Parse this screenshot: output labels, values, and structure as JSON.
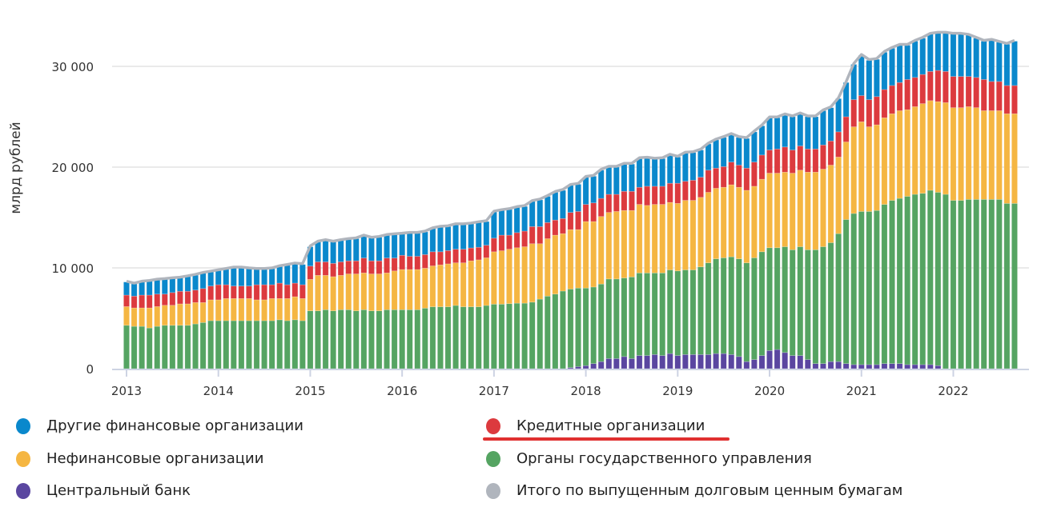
{
  "chart_data": {
    "type": "bar",
    "stacked": true,
    "title": "",
    "xlabel": "",
    "ylabel": "млрд рублей",
    "ylim": [
      0,
      34000
    ],
    "yticks": [
      0,
      10000,
      20000,
      30000
    ],
    "ytick_labels": [
      "0",
      "10 000",
      "20 000",
      "30 000"
    ],
    "xtick_labels": [
      "2013",
      "2014",
      "2015",
      "2016",
      "2017",
      "2018",
      "2019",
      "2020",
      "2021",
      "2022"
    ],
    "grid": "horizontal",
    "legend_placement": "bottom",
    "x": [
      "2013-01",
      "2013-02",
      "2013-03",
      "2013-04",
      "2013-05",
      "2013-06",
      "2013-07",
      "2013-08",
      "2013-09",
      "2013-10",
      "2013-11",
      "2013-12",
      "2014-01",
      "2014-02",
      "2014-03",
      "2014-04",
      "2014-05",
      "2014-06",
      "2014-07",
      "2014-08",
      "2014-09",
      "2014-10",
      "2014-11",
      "2014-12",
      "2015-01",
      "2015-02",
      "2015-03",
      "2015-04",
      "2015-05",
      "2015-06",
      "2015-07",
      "2015-08",
      "2015-09",
      "2015-10",
      "2015-11",
      "2015-12",
      "2016-01",
      "2016-02",
      "2016-03",
      "2016-04",
      "2016-05",
      "2016-06",
      "2016-07",
      "2016-08",
      "2016-09",
      "2016-10",
      "2016-11",
      "2016-12",
      "2017-01",
      "2017-02",
      "2017-03",
      "2017-04",
      "2017-05",
      "2017-06",
      "2017-07",
      "2017-08",
      "2017-09",
      "2017-10",
      "2017-11",
      "2017-12",
      "2018-01",
      "2018-02",
      "2018-03",
      "2018-04",
      "2018-05",
      "2018-06",
      "2018-07",
      "2018-08",
      "2018-09",
      "2018-10",
      "2018-11",
      "2018-12",
      "2019-01",
      "2019-02",
      "2019-03",
      "2019-04",
      "2019-05",
      "2019-06",
      "2019-07",
      "2019-08",
      "2019-09",
      "2019-10",
      "2019-11",
      "2019-12",
      "2020-01",
      "2020-02",
      "2020-03",
      "2020-04",
      "2020-05",
      "2020-06",
      "2020-07",
      "2020-08",
      "2020-09",
      "2020-10",
      "2020-11",
      "2020-12",
      "2021-01",
      "2021-02",
      "2021-03",
      "2021-04",
      "2021-05",
      "2021-06",
      "2021-07",
      "2021-08",
      "2021-09",
      "2021-10",
      "2021-11",
      "2021-12",
      "2022-01",
      "2022-02",
      "2022-03",
      "2022-04",
      "2022-05",
      "2022-06",
      "2022-07",
      "2022-08",
      "2022-09"
    ],
    "series": [
      {
        "name": "Центральный банк",
        "color": "#5a46a0",
        "values": [
          0,
          0,
          0,
          0,
          0,
          0,
          0,
          0,
          0,
          0,
          0,
          0,
          0,
          0,
          0,
          0,
          0,
          0,
          0,
          0,
          0,
          0,
          0,
          0,
          0,
          0,
          0,
          0,
          0,
          0,
          0,
          0,
          0,
          0,
          0,
          0,
          0,
          0,
          0,
          0,
          0,
          0,
          0,
          0,
          0,
          0,
          0,
          0,
          0,
          0,
          0,
          0,
          0,
          0,
          0,
          0,
          0,
          0,
          100,
          200,
          300,
          500,
          700,
          1000,
          1000,
          1200,
          1000,
          1300,
          1300,
          1400,
          1300,
          1500,
          1300,
          1400,
          1400,
          1400,
          1400,
          1500,
          1500,
          1400,
          1200,
          700,
          900,
          1300,
          1800,
          1900,
          1600,
          1300,
          1300,
          900,
          500,
          500,
          700,
          700,
          500,
          400,
          400,
          400,
          400,
          500,
          500,
          500,
          400,
          400,
          400,
          400,
          300,
          0,
          0,
          0,
          0,
          0,
          0,
          0,
          0,
          0,
          0
        ]
      },
      {
        "name": "Органы государственного управления",
        "color": "#55a462",
        "values": [
          4300,
          4200,
          4200,
          4040,
          4200,
          4300,
          4300,
          4300,
          4300,
          4440,
          4580,
          4760,
          4760,
          4760,
          4760,
          4760,
          4760,
          4760,
          4760,
          4760,
          4850,
          4760,
          4850,
          4760,
          5740,
          5740,
          5850,
          5740,
          5850,
          5850,
          5740,
          5850,
          5740,
          5740,
          5850,
          5850,
          5850,
          5850,
          5850,
          6000,
          6140,
          6140,
          6140,
          6270,
          6140,
          6140,
          6140,
          6270,
          6400,
          6400,
          6450,
          6500,
          6500,
          6600,
          6900,
          7200,
          7400,
          7700,
          7800,
          7800,
          7700,
          7600,
          7700,
          7900,
          7900,
          7800,
          8100,
          8200,
          8200,
          8100,
          8200,
          8300,
          8400,
          8400,
          8400,
          8700,
          9100,
          9400,
          9500,
          9700,
          9700,
          9800,
          10100,
          10300,
          10200,
          10100,
          10500,
          10500,
          10800,
          10900,
          11300,
          11600,
          11800,
          12700,
          14300,
          15000,
          15200,
          15200,
          15300,
          15800,
          16200,
          16400,
          16700,
          16900,
          17000,
          17300,
          17200,
          17300,
          16700,
          16700,
          16800,
          16800,
          16800,
          16800,
          16800,
          16400,
          16400
        ]
      },
      {
        "name": "Нефинансовые организации",
        "color": "#f5b642",
        "values": [
          1860,
          1830,
          1830,
          1990,
          1960,
          1990,
          1990,
          2130,
          2130,
          2120,
          1980,
          2070,
          2070,
          2200,
          2200,
          2200,
          2200,
          2070,
          2070,
          2200,
          2110,
          2200,
          2290,
          2200,
          3120,
          3520,
          3410,
          3390,
          3410,
          3550,
          3660,
          3650,
          3660,
          3660,
          3650,
          3850,
          3990,
          3990,
          3990,
          3970,
          4060,
          4160,
          4260,
          4230,
          4360,
          4560,
          4660,
          4730,
          5200,
          5300,
          5400,
          5500,
          5600,
          5800,
          5500,
          5700,
          5850,
          5700,
          5900,
          5800,
          6600,
          6500,
          6700,
          6600,
          6700,
          6700,
          6600,
          6800,
          6700,
          6800,
          6800,
          6700,
          6700,
          6900,
          6900,
          6900,
          7000,
          7000,
          7000,
          7150,
          7100,
          7200,
          7100,
          7200,
          7400,
          7400,
          7400,
          7600,
          7600,
          7700,
          7700,
          7700,
          7700,
          7600,
          7700,
          8600,
          8900,
          8400,
          8500,
          8600,
          8600,
          8700,
          8600,
          8700,
          8900,
          8900,
          9000,
          9100,
          9200,
          9200,
          9200,
          9100,
          8800,
          8800,
          8800,
          8900,
          8900
        ]
      },
      {
        "name": "Кредитные организации",
        "color": "#dc3a3e",
        "values": [
          1140,
          1170,
          1270,
          1270,
          1240,
          1110,
          1260,
          1250,
          1250,
          1240,
          1390,
          1370,
          1500,
          1370,
          1240,
          1240,
          1240,
          1500,
          1500,
          1370,
          1530,
          1370,
          1350,
          1370,
          1320,
          1340,
          1340,
          1320,
          1340,
          1300,
          1300,
          1480,
          1300,
          1300,
          1480,
          1280,
          1410,
          1310,
          1310,
          1350,
          1400,
          1300,
          1320,
          1350,
          1350,
          1280,
          1250,
          1250,
          1350,
          1550,
          1400,
          1500,
          1550,
          1700,
          1700,
          1600,
          1500,
          1500,
          1700,
          1800,
          1700,
          1850,
          1800,
          1800,
          1700,
          1900,
          1900,
          1700,
          1900,
          1800,
          1800,
          1900,
          2000,
          1900,
          2000,
          2000,
          2200,
          2000,
          2050,
          2250,
          2200,
          2200,
          2400,
          2400,
          2300,
          2400,
          2500,
          2300,
          2400,
          2300,
          2300,
          2400,
          2400,
          2500,
          2500,
          2700,
          2600,
          2700,
          2800,
          2800,
          2800,
          2800,
          3000,
          2900,
          2900,
          2900,
          3100,
          3100,
          3100,
          3100,
          3000,
          3000,
          3100,
          2900,
          2900,
          2800,
          2800
        ]
      },
      {
        "name": "Другие финансовые организации",
        "color": "#0a88cc",
        "values": [
          1300,
          1210,
          1300,
          1370,
          1400,
          1460,
          1390,
          1320,
          1450,
          1480,
          1520,
          1400,
          1400,
          1530,
          1800,
          1800,
          1720,
          1530,
          1530,
          1590,
          1640,
          1930,
          1910,
          2010,
          1920,
          1970,
          2120,
          2120,
          2120,
          2130,
          2200,
          2190,
          2260,
          2340,
          2250,
          2320,
          2110,
          2290,
          2290,
          2250,
          2300,
          2450,
          2380,
          2450,
          2450,
          2390,
          2450,
          2350,
          2600,
          2450,
          2550,
          2500,
          2450,
          2500,
          2650,
          2600,
          2750,
          2800,
          2700,
          2700,
          2700,
          2650,
          2800,
          2700,
          2700,
          2700,
          2700,
          2850,
          2800,
          2700,
          2750,
          2800,
          2600,
          2800,
          2750,
          2700,
          2600,
          2800,
          2900,
          2750,
          2750,
          2950,
          3000,
          2900,
          3200,
          3100,
          3200,
          3300,
          3200,
          3200,
          3200,
          3400,
          3300,
          3300,
          3400,
          3500,
          4000,
          3900,
          3700,
          3700,
          3700,
          3700,
          3400,
          3600,
          3600,
          3700,
          3700,
          3800,
          4200,
          4200,
          4100,
          3900,
          3800,
          4100,
          3900,
          4100,
          4400
        ]
      }
    ],
    "total_line": {
      "name": "Итого по выпущенным долговым ценным бумагам",
      "color": "#b0b5bd",
      "values": [
        8600,
        8410,
        8600,
        8670,
        8800,
        8860,
        8940,
        9000,
        9130,
        9280,
        9470,
        9600,
        9730,
        9860,
        10000,
        10000,
        9920,
        9860,
        9860,
        9920,
        10130,
        10260,
        10400,
        10340,
        12100,
        12570,
        12720,
        12570,
        12720,
        12830,
        12900,
        13170,
        12960,
        13040,
        13230,
        13300,
        13360,
        13440,
        13440,
        13570,
        13900,
        14050,
        14100,
        14300,
        14300,
        14370,
        14500,
        14600,
        15550,
        15700,
        15800,
        16000,
        16100,
        16600,
        16750,
        17100,
        17500,
        17700,
        18200,
        18300,
        19000,
        19100,
        19700,
        20000,
        20000,
        20300,
        20300,
        20850,
        20900,
        20800,
        20850,
        21200,
        21000,
        21400,
        21450,
        21700,
        22300,
        22700,
        22950,
        23250,
        22950,
        22850,
        23500,
        24100,
        24900,
        24900,
        25200,
        25000,
        25300,
        25000,
        25000,
        25600,
        25900,
        26800,
        28400,
        30200,
        31100,
        30600,
        30700,
        31400,
        31800,
        32100,
        32100,
        32500,
        32800,
        33200,
        33300,
        33300,
        33200,
        33200,
        33100,
        32800,
        32500,
        32600,
        32400,
        32200,
        32500
      ]
    }
  },
  "legend": [
    {
      "label": "Другие финансовые организации",
      "color": "#0a88cc"
    },
    {
      "label": "Кредитные организации",
      "color": "#dc3a3e",
      "underlined": true
    },
    {
      "label": "Нефинансовые организации",
      "color": "#f5b642"
    },
    {
      "label": "Органы государственного управления",
      "color": "#55a462"
    },
    {
      "label": "Центральный банк",
      "color": "#5a46a0"
    },
    {
      "label": "Итого по выпущенным долговым ценным бумагам",
      "color": "#b0b5bd"
    }
  ]
}
